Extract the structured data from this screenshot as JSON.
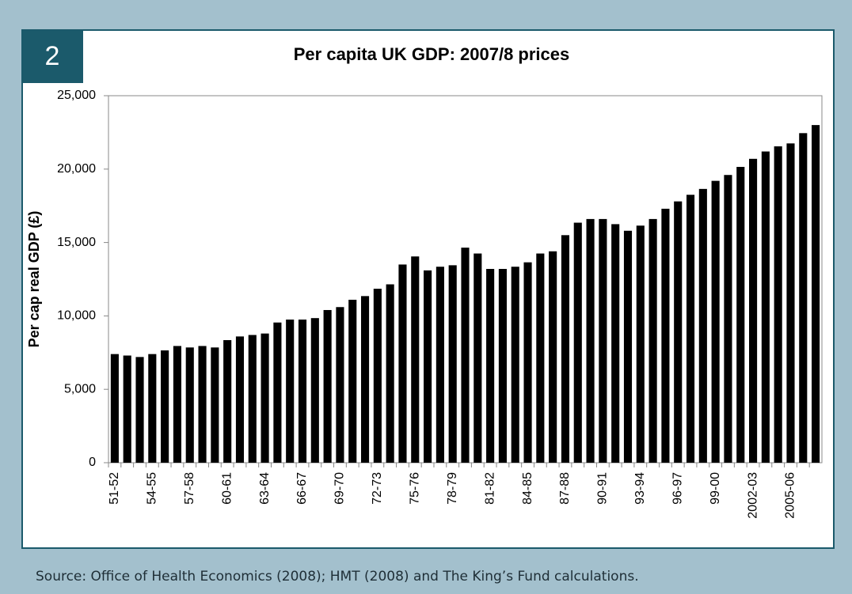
{
  "figure_number": "2",
  "source": "Source: Office of Health Economics (2008); HMT (2008) and The King’s Fund calculations.",
  "chart_data": {
    "type": "bar",
    "title": "Per capita UK GDP: 2007/8 prices",
    "y_label": "Per cap real GDP (£)",
    "categories": [
      "51-52",
      null,
      null,
      "54-55",
      null,
      null,
      "57-58",
      null,
      null,
      "60-61",
      null,
      null,
      "63-64",
      null,
      null,
      "66-67",
      null,
      null,
      "69-70",
      null,
      null,
      "72-73",
      null,
      null,
      "75-76",
      null,
      null,
      "78-79",
      null,
      null,
      "81-82",
      null,
      null,
      "84-85",
      null,
      null,
      "87-88",
      null,
      null,
      "90-91",
      null,
      null,
      "93-94",
      null,
      null,
      "96-97",
      null,
      null,
      "99-00",
      null,
      null,
      "2002-03",
      null,
      null,
      "2005-06",
      null,
      null
    ],
    "values": [
      7400,
      7300,
      7200,
      7400,
      7650,
      7950,
      7850,
      7950,
      7850,
      8350,
      8600,
      8700,
      8800,
      9550,
      9750,
      9750,
      9850,
      10400,
      10600,
      11100,
      11350,
      11850,
      12150,
      13500,
      14050,
      13100,
      13350,
      13450,
      14650,
      14250,
      13200,
      13200,
      13350,
      13650,
      14250,
      14400,
      15500,
      16350,
      16600,
      16600,
      16250,
      15800,
      16150,
      16600,
      17300,
      17800,
      18250,
      18650,
      19200,
      19600,
      20150,
      20700,
      21200,
      21550,
      21750,
      22450,
      23000
    ],
    "color": "#000000",
    "ylim": [
      0,
      25000
    ],
    "yticks": [
      0,
      {
        "value": 5000,
        "label": "5,000"
      },
      {
        "value": 10000,
        "label": "10,000"
      },
      {
        "value": 15000,
        "label": "15,000"
      },
      {
        "value": 20000,
        "label": "20,000"
      },
      {
        "value": 25000,
        "label": "25,000"
      }
    ],
    "grid": false
  }
}
